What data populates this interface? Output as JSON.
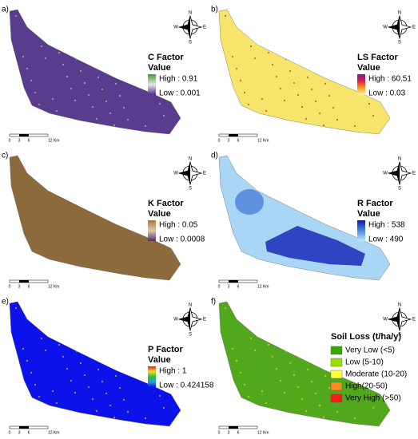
{
  "compass": {
    "n": "N",
    "s": "S",
    "e": "E",
    "w": "W"
  },
  "panels": [
    {
      "label": "a)",
      "fill": "#5a3c8e",
      "legend": {
        "title": "C Factor",
        "subtitle": "Value",
        "high": "High : 0.91",
        "low": "Low : 0.001",
        "ramp": [
          "#3c9a32",
          "#e8e8e8",
          "#4b2a86"
        ]
      },
      "scale": [
        "0",
        "3",
        "6",
        "12 Km"
      ]
    },
    {
      "label": "b)",
      "fill": "#f6e56a",
      "legend": {
        "title": "LS Factor",
        "subtitle": "Value",
        "high": "High : 60.51",
        "low": "Low : 0.03",
        "ramp": [
          "#7a1aa8",
          "#e0203a",
          "#f6a020",
          "#fff8a0"
        ]
      },
      "scale": [
        "0",
        "3",
        "6",
        "12 Km"
      ]
    },
    {
      "label": "c)",
      "fill": "#8d6a3c",
      "legend": {
        "title": "K Factor",
        "subtitle": "Value",
        "high": "High : 0.05",
        "low": "Low : 0.0008",
        "ramp": [
          "#a87a40",
          "#e0c8a0",
          "#4a2a80"
        ]
      },
      "scale": [
        "0",
        "3",
        "6",
        "12 Km"
      ]
    },
    {
      "label": "d)",
      "fill": "#a8d6f4",
      "legend": {
        "title": "R Factor",
        "subtitle": "Value",
        "high": "High : 538",
        "low": "Low : 490",
        "ramp": [
          "#0a1aa0",
          "#4a8ae0",
          "#c8e6fa"
        ]
      },
      "scale": [
        "0",
        "3",
        "6",
        "12 Km"
      ]
    },
    {
      "label": "e)",
      "fill": "#0b12ea",
      "legend": {
        "title": "P Factor",
        "subtitle": "Value",
        "high": "High : 1",
        "low": "Low : 0.424158",
        "ramp": [
          "#e02020",
          "#f0e020",
          "#30c030",
          "#20a0e0",
          "#1010e0"
        ]
      },
      "scale": [
        "0",
        "3",
        "6",
        "12 Km"
      ]
    },
    {
      "label": "f)",
      "fill": "#52a81c",
      "legend": {
        "title": "Soil Loss (t/ha/y)",
        "items": [
          {
            "label": "Very Low (<5)",
            "color": "#38a800"
          },
          {
            "label": "Low (5-10)",
            "color": "#98e000"
          },
          {
            "label": "Moderate (10-20)",
            "color": "#ffff40"
          },
          {
            "label": "High(20-50)",
            "color": "#ff8c1a"
          },
          {
            "label": "Very High (>50)",
            "color": "#ff1a1a"
          }
        ]
      },
      "scale": [
        "0",
        "3",
        "6",
        "12 Km"
      ]
    }
  ]
}
